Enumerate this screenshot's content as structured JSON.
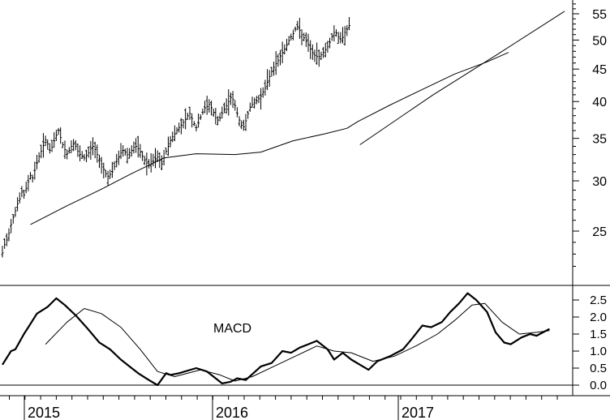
{
  "chart_data": [
    {
      "type": "ohlc",
      "panel": "price",
      "yscale": "log",
      "ylim": [
        21,
        58
      ],
      "yticks": [
        25,
        30,
        35,
        40,
        45,
        50,
        55
      ],
      "ytick_labels": [
        "25",
        "30",
        "35",
        "40",
        "45",
        "50",
        "55"
      ],
      "grid": false,
      "x_year_labels": [
        "2015",
        "2016",
        "2017"
      ],
      "weeks_price": [
        23.1,
        23.8,
        24.2,
        24.8,
        25.6,
        26.3,
        26.9,
        27.6,
        28.1,
        28.8,
        28.5,
        29.2,
        29.9,
        30.6,
        30.3,
        31.2,
        32.0,
        32.8,
        33.4,
        34.1,
        34.8,
        34.3,
        33.5,
        33.9,
        34.7,
        35.4,
        36.0,
        35.1,
        34.2,
        33.6,
        33.1,
        33.5,
        34.0,
        34.3,
        34.0,
        33.4,
        33.0,
        32.8,
        32.6,
        32.9,
        33.2,
        33.7,
        34.0,
        33.6,
        33.0,
        32.5,
        31.9,
        31.3,
        30.8,
        30.5,
        30.7,
        31.0,
        31.6,
        32.2,
        32.7,
        33.2,
        33.5,
        33.3,
        33.0,
        33.2,
        33.5,
        33.9,
        34.0,
        33.7,
        33.3,
        32.8,
        32.3,
        32.0,
        31.8,
        31.9,
        32.2,
        32.5,
        32.7,
        32.3,
        31.9,
        32.6,
        33.4,
        34.0,
        34.7,
        35.2,
        35.6,
        36.0,
        36.4,
        36.7,
        37.1,
        37.5,
        38.0,
        38.3,
        37.6,
        36.9,
        36.4,
        37.0,
        37.8,
        38.5,
        39.1,
        39.3,
        39.6,
        39.1,
        38.4,
        37.7,
        37.4,
        37.7,
        38.3,
        38.9,
        39.4,
        40.0,
        40.6,
        40.3,
        39.4,
        38.3,
        37.4,
        36.7,
        36.5,
        37.3,
        38.3,
        39.2,
        39.6,
        39.8,
        40.1,
        40.4,
        40.8,
        41.4,
        42.0,
        42.9,
        43.8,
        44.6,
        45.3,
        45.9,
        46.4,
        47.2,
        47.8,
        48.4,
        49.1,
        49.9,
        50.6,
        51.2,
        52.0,
        52.5,
        51.8,
        51.0,
        50.4,
        49.8,
        49.2,
        48.4,
        47.8,
        47.3,
        47.1,
        47.1,
        47.4,
        47.8,
        48.3,
        48.8,
        49.6,
        50.6,
        51.4,
        51.3,
        50.6,
        50.2,
        50.5,
        51.4,
        52.0,
        52.7
      ],
      "moving_average_line": [
        [
          13,
          25.6
        ],
        [
          30,
          27.4
        ],
        [
          45,
          29.0
        ],
        [
          60,
          30.8
        ],
        [
          75,
          32.6
        ],
        [
          90,
          33.1
        ],
        [
          108,
          33.0
        ],
        [
          120,
          33.3
        ],
        [
          135,
          34.7
        ],
        [
          150,
          35.6
        ],
        [
          160,
          36.3
        ],
        [
          165,
          37.2
        ],
        [
          180,
          39.5
        ],
        [
          195,
          41.8
        ],
        [
          210,
          44.2
        ],
        [
          225,
          46.2
        ],
        [
          235,
          47.8
        ]
      ],
      "trend_line": [
        [
          166,
          34.2
        ],
        [
          200,
          41.0
        ],
        [
          230,
          47.5
        ],
        [
          261,
          55.5
        ]
      ]
    },
    {
      "type": "line",
      "panel": "macd",
      "label": "MACD",
      "ylim": [
        -0.2,
        2.8
      ],
      "yticks": [
        0.0,
        0.5,
        1.0,
        1.5,
        2.0,
        2.5
      ],
      "ytick_labels": [
        "0.0",
        "0.5",
        "1.0",
        "1.5",
        "2.0",
        "2.5"
      ],
      "series": [
        {
          "style": "thick",
          "points": [
            [
              0,
              0.6
            ],
            [
              4,
              1.0
            ],
            [
              6,
              1.05
            ],
            [
              10,
              1.5
            ],
            [
              12,
              1.7
            ],
            [
              16,
              2.1
            ],
            [
              21,
              2.3
            ],
            [
              25,
              2.55
            ],
            [
              29,
              2.35
            ],
            [
              34,
              2.05
            ],
            [
              39,
              1.7
            ],
            [
              45,
              1.25
            ],
            [
              50,
              1.05
            ],
            [
              55,
              0.75
            ],
            [
              60,
              0.5
            ],
            [
              63,
              0.35
            ],
            [
              68,
              0.15
            ],
            [
              72,
              0.0
            ],
            [
              76,
              0.35
            ],
            [
              78,
              0.3
            ],
            [
              82,
              0.35
            ],
            [
              90,
              0.5
            ],
            [
              95,
              0.4
            ],
            [
              98,
              0.25
            ],
            [
              102,
              0.05
            ],
            [
              106,
              0.1
            ],
            [
              109,
              0.2
            ],
            [
              113,
              0.15
            ],
            [
              120,
              0.55
            ],
            [
              125,
              0.65
            ],
            [
              130,
              1.0
            ],
            [
              134,
              0.95
            ],
            [
              138,
              1.1
            ],
            [
              142,
              1.2
            ],
            [
              146,
              1.3
            ],
            [
              151,
              1.05
            ],
            [
              154,
              0.75
            ],
            [
              158,
              0.95
            ],
            [
              162,
              0.75
            ],
            [
              166,
              0.6
            ],
            [
              170,
              0.45
            ],
            [
              174,
              0.7
            ],
            [
              180,
              0.85
            ],
            [
              186,
              1.05
            ],
            [
              190,
              1.35
            ],
            [
              195,
              1.75
            ],
            [
              199,
              1.7
            ],
            [
              204,
              1.85
            ],
            [
              208,
              2.15
            ],
            [
              212,
              2.4
            ],
            [
              216,
              2.7
            ],
            [
              220,
              2.5
            ],
            [
              225,
              2.15
            ],
            [
              229,
              1.55
            ],
            [
              233,
              1.25
            ],
            [
              236,
              1.2
            ],
            [
              241,
              1.4
            ],
            [
              245,
              1.5
            ],
            [
              248,
              1.45
            ],
            [
              251,
              1.55
            ],
            [
              254,
              1.65
            ]
          ]
        },
        {
          "style": "thin",
          "points": [
            [
              20,
              1.2
            ],
            [
              30,
              1.85
            ],
            [
              38,
              2.25
            ],
            [
              46,
              2.1
            ],
            [
              55,
              1.7
            ],
            [
              64,
              1.05
            ],
            [
              72,
              0.4
            ],
            [
              80,
              0.25
            ],
            [
              92,
              0.45
            ],
            [
              101,
              0.3
            ],
            [
              108,
              0.12
            ],
            [
              116,
              0.25
            ],
            [
              126,
              0.55
            ],
            [
              136,
              0.85
            ],
            [
              146,
              1.15
            ],
            [
              154,
              1.0
            ],
            [
              162,
              0.95
            ],
            [
              172,
              0.7
            ],
            [
              182,
              0.85
            ],
            [
              192,
              1.15
            ],
            [
              202,
              1.5
            ],
            [
              210,
              1.9
            ],
            [
              218,
              2.35
            ],
            [
              224,
              2.4
            ],
            [
              232,
              1.85
            ],
            [
              240,
              1.5
            ],
            [
              248,
              1.55
            ],
            [
              254,
              1.6
            ]
          ]
        }
      ]
    }
  ]
}
